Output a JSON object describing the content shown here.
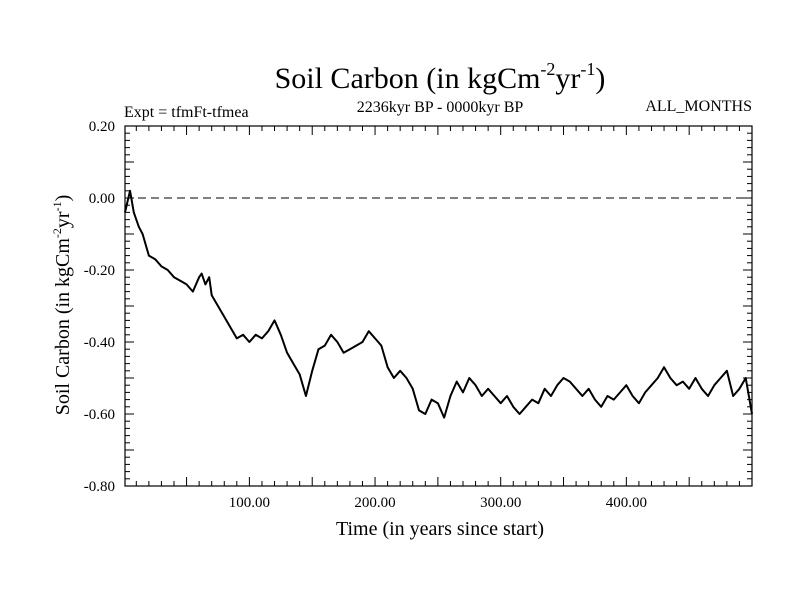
{
  "chart_data": {
    "type": "line",
    "title": {
      "main": "Soil Carbon (in kgCm",
      "exp1": "-2",
      "mid": "yr",
      "exp2": "-1",
      "end": ")"
    },
    "subtitle_left": "Expt = tfmFt-tfmea",
    "subtitle_center": "2236kyr BP - 0000kyr BP",
    "subtitle_right": "ALL_MONTHS",
    "xlabel": "Time (in years since start)",
    "ylabel": {
      "main": "Soil Carbon (in kgCm",
      "exp1": "-2",
      "mid": "yr",
      "exp2": "-1",
      "end": ")"
    },
    "xlim": [
      1,
      500
    ],
    "ylim": [
      -0.8,
      0.2
    ],
    "xticks": [
      100,
      200,
      300,
      400
    ],
    "xtick_labels": [
      "100.00",
      "200.00",
      "300.00",
      "400.00"
    ],
    "yticks": [
      0.2,
      0.0,
      -0.2,
      -0.4,
      -0.6,
      -0.8
    ],
    "ytick_labels": [
      "0.20",
      "0.00",
      "-0.20",
      "-0.40",
      "-0.60",
      "-0.80"
    ],
    "reference_line": {
      "y": 0.0,
      "style": "dashed"
    },
    "series": [
      {
        "name": "Soil Carbon",
        "x": [
          1,
          5,
          8,
          12,
          15,
          20,
          25,
          30,
          35,
          40,
          45,
          50,
          55,
          60,
          62,
          65,
          68,
          70,
          75,
          80,
          85,
          90,
          95,
          100,
          105,
          110,
          115,
          120,
          125,
          130,
          135,
          140,
          145,
          150,
          155,
          160,
          165,
          170,
          175,
          180,
          185,
          190,
          195,
          200,
          205,
          210,
          215,
          220,
          225,
          230,
          235,
          240,
          245,
          250,
          255,
          260,
          265,
          270,
          275,
          280,
          285,
          290,
          295,
          300,
          305,
          310,
          315,
          320,
          325,
          330,
          335,
          340,
          345,
          350,
          355,
          360,
          365,
          370,
          375,
          380,
          385,
          390,
          395,
          400,
          405,
          410,
          415,
          420,
          425,
          430,
          435,
          440,
          445,
          450,
          455,
          460,
          465,
          470,
          475,
          480,
          485,
          490,
          495,
          500
        ],
        "y": [
          -0.04,
          0.02,
          -0.04,
          -0.08,
          -0.1,
          -0.16,
          -0.17,
          -0.19,
          -0.2,
          -0.22,
          -0.23,
          -0.24,
          -0.26,
          -0.22,
          -0.21,
          -0.24,
          -0.22,
          -0.27,
          -0.3,
          -0.33,
          -0.36,
          -0.39,
          -0.38,
          -0.4,
          -0.38,
          -0.39,
          -0.37,
          -0.34,
          -0.38,
          -0.43,
          -0.46,
          -0.49,
          -0.55,
          -0.48,
          -0.42,
          -0.41,
          -0.38,
          -0.4,
          -0.43,
          -0.42,
          -0.41,
          -0.4,
          -0.37,
          -0.39,
          -0.41,
          -0.47,
          -0.5,
          -0.48,
          -0.5,
          -0.53,
          -0.59,
          -0.6,
          -0.56,
          -0.57,
          -0.61,
          -0.55,
          -0.51,
          -0.54,
          -0.5,
          -0.52,
          -0.55,
          -0.53,
          -0.55,
          -0.57,
          -0.55,
          -0.58,
          -0.6,
          -0.58,
          -0.56,
          -0.57,
          -0.53,
          -0.55,
          -0.52,
          -0.5,
          -0.51,
          -0.53,
          -0.55,
          -0.53,
          -0.56,
          -0.58,
          -0.55,
          -0.56,
          -0.54,
          -0.52,
          -0.55,
          -0.57,
          -0.54,
          -0.52,
          -0.5,
          -0.47,
          -0.5,
          -0.52,
          -0.51,
          -0.53,
          -0.5,
          -0.53,
          -0.55,
          -0.52,
          -0.5,
          -0.48,
          -0.55,
          -0.53,
          -0.5,
          -0.6
        ]
      }
    ]
  }
}
